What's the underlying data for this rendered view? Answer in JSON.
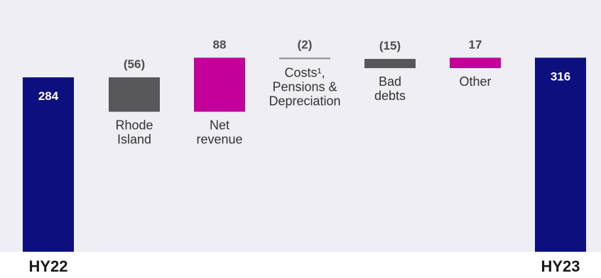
{
  "chart_data": {
    "type": "bar",
    "subtype": "waterfall",
    "start": {
      "label": "HY22",
      "value": 284
    },
    "end": {
      "label": "HY23",
      "value": 316
    },
    "steps": [
      {
        "name": "rhode-island",
        "label_lines": [
          "Rhode",
          "Island"
        ],
        "value": -56,
        "display": "(56)",
        "color": "#58585a"
      },
      {
        "name": "net-revenue",
        "label_lines": [
          "Net",
          "revenue"
        ],
        "value": 88,
        "display": "88",
        "color": "#c4009b"
      },
      {
        "name": "costs",
        "label_lines": [
          "Costs¹,",
          "Pensions &",
          "Depreciation"
        ],
        "value": -2,
        "display": "(2)",
        "color": "#8c8c8e"
      },
      {
        "name": "bad-debts",
        "label_lines": [
          "Bad",
          "debts"
        ],
        "value": -15,
        "display": "(15)",
        "color": "#58585a"
      },
      {
        "name": "other",
        "label_lines": [
          "Other"
        ],
        "value": 17,
        "display": "17",
        "color": "#c4009b"
      }
    ],
    "colors": {
      "total": "#0c0f7d",
      "negative": "#58585a",
      "positive": "#c4009b",
      "value_text": "#4d4d4f"
    }
  }
}
